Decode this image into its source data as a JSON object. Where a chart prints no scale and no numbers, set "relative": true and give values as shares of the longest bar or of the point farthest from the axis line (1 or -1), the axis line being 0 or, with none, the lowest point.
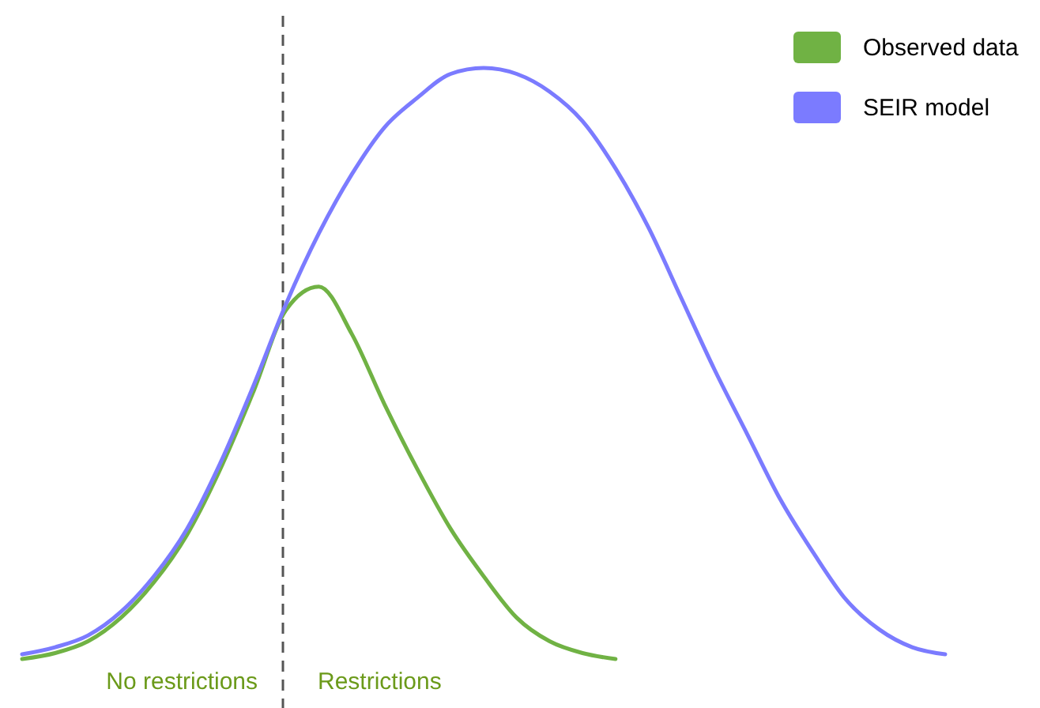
{
  "chart_data": {
    "type": "line",
    "relative": true,
    "legend": "top right",
    "line_style": "solid",
    "marker": "none",
    "categories": [
      null,
      null,
      null,
      null,
      null,
      null,
      null,
      null,
      null,
      null,
      null,
      null,
      null,
      null,
      null,
      null,
      null,
      null,
      null,
      null,
      null,
      null,
      null,
      null,
      null,
      null,
      null,
      null,
      null
    ],
    "series": [
      {
        "name": "Observed data",
        "color": "#70b244",
        "values": [
          0,
          0.01,
          0.03,
          0.07,
          0.13,
          0.21,
          0.32,
          0.45,
          0.59,
          0.63,
          0.55,
          0.43,
          0.32,
          0.22,
          0.14,
          0.07,
          0.03,
          0.01,
          0,
          null,
          null,
          null,
          null,
          null,
          null,
          null,
          null,
          null,
          null
        ]
      },
      {
        "name": "SEIR model",
        "color": "#7b7bff",
        "values": [
          0.008,
          0.02,
          0.04,
          0.08,
          0.14,
          0.22,
          0.33,
          0.46,
          0.6,
          0.72,
          0.82,
          0.9,
          0.95,
          0.99,
          1,
          0.99,
          0.96,
          0.91,
          0.83,
          0.73,
          0.61,
          0.49,
          0.38,
          0.27,
          0.18,
          0.1,
          0.05,
          0.02,
          0.008
        ]
      }
    ],
    "annotations": [
      "No restrictions",
      "Restrictions"
    ]
  }
}
